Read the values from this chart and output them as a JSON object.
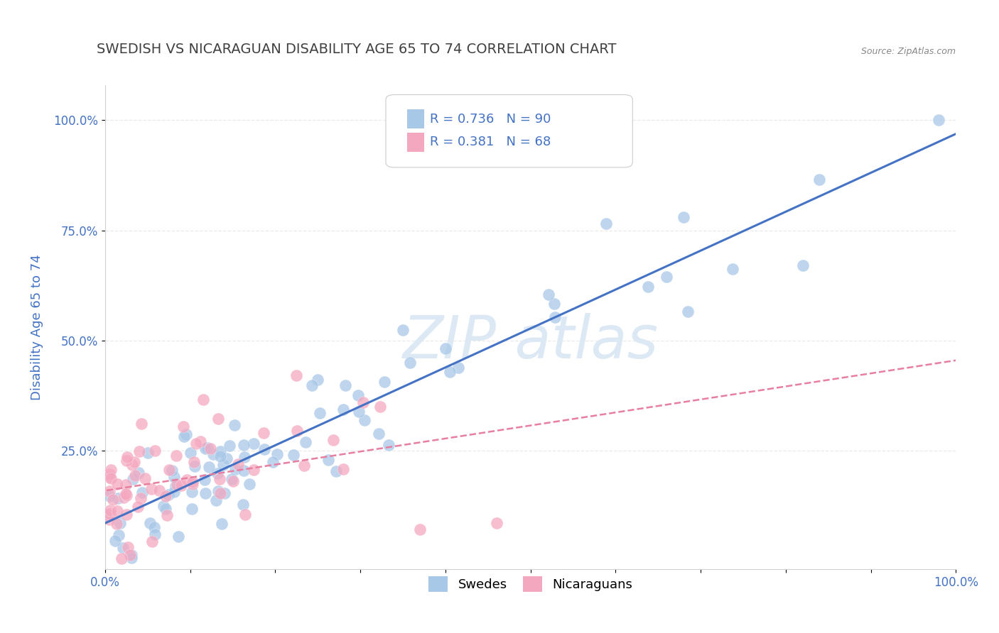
{
  "title": "SWEDISH VS NICARAGUAN DISABILITY AGE 65 TO 74 CORRELATION CHART",
  "source": "Source: ZipAtlas.com",
  "ylabel": "Disability Age 65 to 74",
  "xlim": [
    0.0,
    1.0
  ],
  "ylim": [
    -0.02,
    1.08
  ],
  "xticks": [
    0.0,
    0.1,
    0.2,
    0.3,
    0.4,
    0.5,
    0.6,
    0.7,
    0.8,
    0.9,
    1.0
  ],
  "xticklabels": [
    "0.0%",
    "",
    "",
    "",
    "",
    "",
    "",
    "",
    "",
    "",
    "100.0%"
  ],
  "yticks": [
    0.25,
    0.5,
    0.75,
    1.0
  ],
  "yticklabels": [
    "25.0%",
    "50.0%",
    "75.0%",
    "100.0%"
  ],
  "swedes_R": 0.736,
  "swedes_N": 90,
  "nicaraguans_R": 0.381,
  "nicaraguans_N": 68,
  "blue_color": "#a8c8e8",
  "pink_color": "#f4a8c0",
  "blue_line_color": "#4472c4",
  "pink_line_color": "#e87fa0",
  "title_color": "#404040",
  "axis_label_color": "#4472c4",
  "watermark_color": "#d8e8f4",
  "background_color": "#ffffff",
  "grid_color": "#e8e8e8",
  "grid_style": "--",
  "legend_text_color": "#4472c4",
  "legend_box_color": "#f0f4f8",
  "source_color": "#888888"
}
